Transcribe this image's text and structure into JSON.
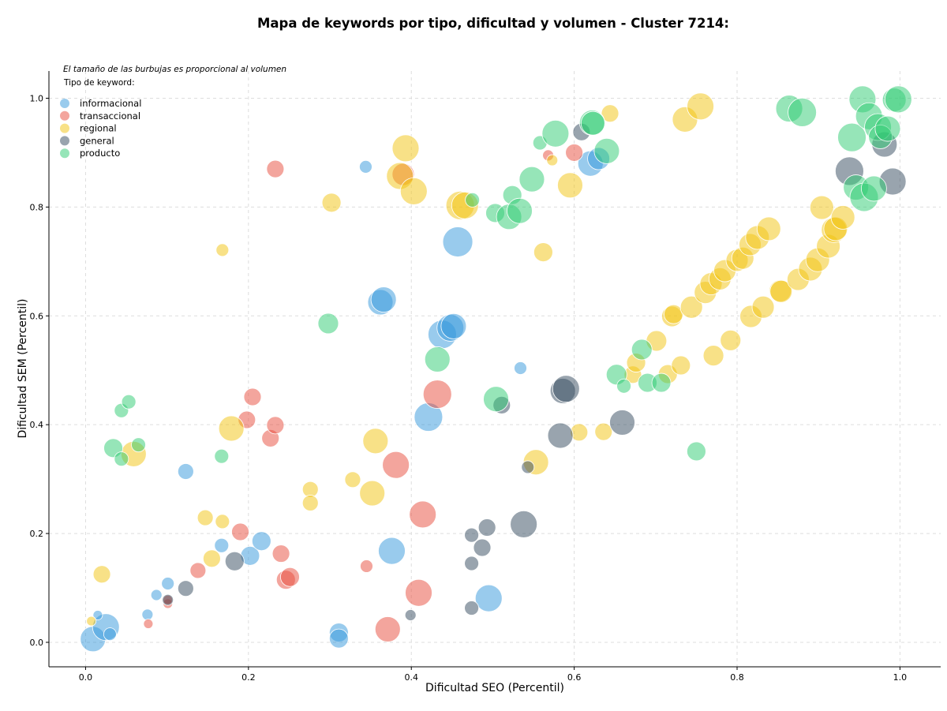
{
  "chart_data": {
    "type": "scatter",
    "title": "Mapa de keywords por tipo, dificultad y volumen - Cluster 7214:",
    "xlabel": "Dificultad SEO (Percentil)",
    "ylabel": "Dificultad SEM (Percentil)",
    "xlim": [
      -0.045,
      1.05
    ],
    "ylim": [
      -0.045,
      1.05
    ],
    "xticks": [
      "0.0",
      "0.2",
      "0.4",
      "0.6",
      "0.8",
      "1.0"
    ],
    "yticks": [
      "0.0",
      "0.2",
      "0.4",
      "0.6",
      "0.8",
      "1.0"
    ],
    "grid": true,
    "note": "El tamaño de las burbujas es proporcional al volumen",
    "legend_title": "Tipo de keyword:",
    "legend_position": "top-left",
    "series": [
      {
        "name": "informacional",
        "color": "#3498db",
        "points": [
          {
            "x": 0.009,
            "y": 0.006,
            "r": 16
          },
          {
            "x": 0.025,
            "y": 0.028,
            "r": 17
          },
          {
            "x": 0.03,
            "y": 0.015,
            "r": 8
          },
          {
            "x": 0.015,
            "y": 0.05,
            "r": 6
          },
          {
            "x": 0.076,
            "y": 0.051,
            "r": 7
          },
          {
            "x": 0.087,
            "y": 0.087,
            "r": 7
          },
          {
            "x": 0.101,
            "y": 0.108,
            "r": 8
          },
          {
            "x": 0.123,
            "y": 0.314,
            "r": 10
          },
          {
            "x": 0.167,
            "y": 0.178,
            "r": 9
          },
          {
            "x": 0.202,
            "y": 0.159,
            "r": 12
          },
          {
            "x": 0.216,
            "y": 0.186,
            "r": 12
          },
          {
            "x": 0.311,
            "y": 0.018,
            "r": 12
          },
          {
            "x": 0.311,
            "y": 0.007,
            "r": 12
          },
          {
            "x": 0.344,
            "y": 0.874,
            "r": 8
          },
          {
            "x": 0.362,
            "y": 0.625,
            "r": 16
          },
          {
            "x": 0.366,
            "y": 0.63,
            "r": 16
          },
          {
            "x": 0.376,
            "y": 0.168,
            "r": 17
          },
          {
            "x": 0.421,
            "y": 0.414,
            "r": 18
          },
          {
            "x": 0.438,
            "y": 0.566,
            "r": 18
          },
          {
            "x": 0.448,
            "y": 0.578,
            "r": 17
          },
          {
            "x": 0.452,
            "y": 0.581,
            "r": 16
          },
          {
            "x": 0.457,
            "y": 0.736,
            "r": 19
          },
          {
            "x": 0.495,
            "y": 0.081,
            "r": 17
          },
          {
            "x": 0.534,
            "y": 0.504,
            "r": 8
          },
          {
            "x": 0.62,
            "y": 0.88,
            "r": 16
          },
          {
            "x": 0.63,
            "y": 0.889,
            "r": 14
          }
        ]
      },
      {
        "name": "transaccional",
        "color": "#e74c3c",
        "points": [
          {
            "x": 0.077,
            "y": 0.034,
            "r": 6
          },
          {
            "x": 0.101,
            "y": 0.071,
            "r": 6
          },
          {
            "x": 0.101,
            "y": 0.078,
            "r": 6
          },
          {
            "x": 0.138,
            "y": 0.132,
            "r": 10
          },
          {
            "x": 0.19,
            "y": 0.203,
            "r": 11
          },
          {
            "x": 0.198,
            "y": 0.409,
            "r": 11
          },
          {
            "x": 0.205,
            "y": 0.451,
            "r": 11
          },
          {
            "x": 0.227,
            "y": 0.375,
            "r": 11
          },
          {
            "x": 0.233,
            "y": 0.399,
            "r": 11
          },
          {
            "x": 0.233,
            "y": 0.87,
            "r": 11
          },
          {
            "x": 0.24,
            "y": 0.163,
            "r": 11
          },
          {
            "x": 0.246,
            "y": 0.115,
            "r": 12
          },
          {
            "x": 0.251,
            "y": 0.12,
            "r": 12
          },
          {
            "x": 0.345,
            "y": 0.14,
            "r": 8
          },
          {
            "x": 0.371,
            "y": 0.024,
            "r": 16
          },
          {
            "x": 0.381,
            "y": 0.326,
            "r": 17
          },
          {
            "x": 0.39,
            "y": 0.86,
            "r": 14
          },
          {
            "x": 0.409,
            "y": 0.091,
            "r": 17
          },
          {
            "x": 0.414,
            "y": 0.235,
            "r": 17
          },
          {
            "x": 0.432,
            "y": 0.456,
            "r": 18
          },
          {
            "x": 0.568,
            "y": 0.895,
            "r": 7
          },
          {
            "x": 0.6,
            "y": 0.9,
            "r": 11
          }
        ]
      },
      {
        "name": "regional",
        "color": "#f1c40f",
        "points": [
          {
            "x": 0.007,
            "y": 0.039,
            "r": 6
          },
          {
            "x": 0.02,
            "y": 0.125,
            "r": 11
          },
          {
            "x": 0.059,
            "y": 0.346,
            "r": 16
          },
          {
            "x": 0.147,
            "y": 0.229,
            "r": 10
          },
          {
            "x": 0.155,
            "y": 0.154,
            "r": 11
          },
          {
            "x": 0.168,
            "y": 0.222,
            "r": 9
          },
          {
            "x": 0.168,
            "y": 0.721,
            "r": 8
          },
          {
            "x": 0.179,
            "y": 0.393,
            "r": 16
          },
          {
            "x": 0.276,
            "y": 0.281,
            "r": 10
          },
          {
            "x": 0.276,
            "y": 0.256,
            "r": 10
          },
          {
            "x": 0.302,
            "y": 0.808,
            "r": 12
          },
          {
            "x": 0.328,
            "y": 0.299,
            "r": 10
          },
          {
            "x": 0.352,
            "y": 0.274,
            "r": 16
          },
          {
            "x": 0.356,
            "y": 0.37,
            "r": 16
          },
          {
            "x": 0.386,
            "y": 0.857,
            "r": 17
          },
          {
            "x": 0.393,
            "y": 0.908,
            "r": 17
          },
          {
            "x": 0.403,
            "y": 0.829,
            "r": 17
          },
          {
            "x": 0.46,
            "y": 0.803,
            "r": 18
          },
          {
            "x": 0.466,
            "y": 0.803,
            "r": 17
          },
          {
            "x": 0.553,
            "y": 0.331,
            "r": 16
          },
          {
            "x": 0.562,
            "y": 0.717,
            "r": 12
          },
          {
            "x": 0.573,
            "y": 0.886,
            "r": 7
          },
          {
            "x": 0.595,
            "y": 0.84,
            "r": 16
          },
          {
            "x": 0.606,
            "y": 0.386,
            "r": 11
          },
          {
            "x": 0.636,
            "y": 0.387,
            "r": 11
          },
          {
            "x": 0.644,
            "y": 0.972,
            "r": 11
          },
          {
            "x": 0.672,
            "y": 0.492,
            "r": 11
          },
          {
            "x": 0.676,
            "y": 0.514,
            "r": 12
          },
          {
            "x": 0.701,
            "y": 0.554,
            "r": 13
          },
          {
            "x": 0.715,
            "y": 0.493,
            "r": 12
          },
          {
            "x": 0.72,
            "y": 0.599,
            "r": 13
          },
          {
            "x": 0.722,
            "y": 0.603,
            "r": 12
          },
          {
            "x": 0.731,
            "y": 0.509,
            "r": 12
          },
          {
            "x": 0.736,
            "y": 0.961,
            "r": 16
          },
          {
            "x": 0.744,
            "y": 0.616,
            "r": 14
          },
          {
            "x": 0.755,
            "y": 0.985,
            "r": 17
          },
          {
            "x": 0.761,
            "y": 0.643,
            "r": 14
          },
          {
            "x": 0.768,
            "y": 0.659,
            "r": 14
          },
          {
            "x": 0.771,
            "y": 0.527,
            "r": 13
          },
          {
            "x": 0.779,
            "y": 0.668,
            "r": 14
          },
          {
            "x": 0.785,
            "y": 0.683,
            "r": 14
          },
          {
            "x": 0.792,
            "y": 0.555,
            "r": 13
          },
          {
            "x": 0.8,
            "y": 0.702,
            "r": 14
          },
          {
            "x": 0.807,
            "y": 0.706,
            "r": 14
          },
          {
            "x": 0.816,
            "y": 0.731,
            "r": 14
          },
          {
            "x": 0.817,
            "y": 0.599,
            "r": 14
          },
          {
            "x": 0.825,
            "y": 0.744,
            "r": 15
          },
          {
            "x": 0.832,
            "y": 0.616,
            "r": 14
          },
          {
            "x": 0.839,
            "y": 0.76,
            "r": 15
          },
          {
            "x": 0.853,
            "y": 0.646,
            "r": 14
          },
          {
            "x": 0.854,
            "y": 0.645,
            "r": 14
          },
          {
            "x": 0.875,
            "y": 0.667,
            "r": 14
          },
          {
            "x": 0.89,
            "y": 0.686,
            "r": 15
          },
          {
            "x": 0.899,
            "y": 0.703,
            "r": 15
          },
          {
            "x": 0.904,
            "y": 0.799,
            "r": 15
          },
          {
            "x": 0.912,
            "y": 0.728,
            "r": 15
          },
          {
            "x": 0.919,
            "y": 0.758,
            "r": 16
          },
          {
            "x": 0.921,
            "y": 0.76,
            "r": 15
          },
          {
            "x": 0.93,
            "y": 0.781,
            "r": 15
          }
        ]
      },
      {
        "name": "general",
        "color": "#34495e",
        "points": [
          {
            "x": 0.101,
            "y": 0.078,
            "r": 7
          },
          {
            "x": 0.123,
            "y": 0.099,
            "r": 10
          },
          {
            "x": 0.183,
            "y": 0.149,
            "r": 12
          },
          {
            "x": 0.399,
            "y": 0.05,
            "r": 7
          },
          {
            "x": 0.474,
            "y": 0.063,
            "r": 9
          },
          {
            "x": 0.474,
            "y": 0.145,
            "r": 9
          },
          {
            "x": 0.474,
            "y": 0.197,
            "r": 9
          },
          {
            "x": 0.487,
            "y": 0.174,
            "r": 11
          },
          {
            "x": 0.493,
            "y": 0.211,
            "r": 11
          },
          {
            "x": 0.511,
            "y": 0.436,
            "r": 11
          },
          {
            "x": 0.538,
            "y": 0.217,
            "r": 17
          },
          {
            "x": 0.543,
            "y": 0.322,
            "r": 8
          },
          {
            "x": 0.583,
            "y": 0.38,
            "r": 16
          },
          {
            "x": 0.586,
            "y": 0.462,
            "r": 16
          },
          {
            "x": 0.59,
            "y": 0.466,
            "r": 17
          },
          {
            "x": 0.609,
            "y": 0.938,
            "r": 11
          },
          {
            "x": 0.659,
            "y": 0.404,
            "r": 16
          },
          {
            "x": 0.938,
            "y": 0.866,
            "r": 18
          },
          {
            "x": 0.981,
            "y": 0.915,
            "r": 16
          },
          {
            "x": 0.991,
            "y": 0.847,
            "r": 17
          }
        ]
      },
      {
        "name": "producto",
        "color": "#2ecc71",
        "points": [
          {
            "x": 0.034,
            "y": 0.357,
            "r": 12
          },
          {
            "x": 0.044,
            "y": 0.337,
            "r": 9
          },
          {
            "x": 0.044,
            "y": 0.426,
            "r": 9
          },
          {
            "x": 0.053,
            "y": 0.442,
            "r": 9
          },
          {
            "x": 0.065,
            "y": 0.363,
            "r": 9
          },
          {
            "x": 0.167,
            "y": 0.342,
            "r": 9
          },
          {
            "x": 0.298,
            "y": 0.586,
            "r": 13
          },
          {
            "x": 0.432,
            "y": 0.52,
            "r": 16
          },
          {
            "x": 0.475,
            "y": 0.813,
            "r": 9
          },
          {
            "x": 0.503,
            "y": 0.789,
            "r": 12
          },
          {
            "x": 0.504,
            "y": 0.447,
            "r": 16
          },
          {
            "x": 0.52,
            "y": 0.782,
            "r": 16
          },
          {
            "x": 0.524,
            "y": 0.822,
            "r": 12
          },
          {
            "x": 0.533,
            "y": 0.793,
            "r": 16
          },
          {
            "x": 0.548,
            "y": 0.851,
            "r": 16
          },
          {
            "x": 0.558,
            "y": 0.918,
            "r": 9
          },
          {
            "x": 0.577,
            "y": 0.935,
            "r": 17
          },
          {
            "x": 0.622,
            "y": 0.955,
            "r": 16
          },
          {
            "x": 0.623,
            "y": 0.954,
            "r": 15
          },
          {
            "x": 0.64,
            "y": 0.903,
            "r": 16
          },
          {
            "x": 0.652,
            "y": 0.492,
            "r": 13
          },
          {
            "x": 0.661,
            "y": 0.471,
            "r": 9
          },
          {
            "x": 0.683,
            "y": 0.538,
            "r": 13
          },
          {
            "x": 0.69,
            "y": 0.477,
            "r": 12
          },
          {
            "x": 0.707,
            "y": 0.477,
            "r": 12
          },
          {
            "x": 0.75,
            "y": 0.351,
            "r": 12
          },
          {
            "x": 0.864,
            "y": 0.981,
            "r": 17
          },
          {
            "x": 0.88,
            "y": 0.974,
            "r": 18
          },
          {
            "x": 0.941,
            "y": 0.928,
            "r": 18
          },
          {
            "x": 0.946,
            "y": 0.836,
            "r": 16
          },
          {
            "x": 0.954,
            "y": 0.998,
            "r": 17
          },
          {
            "x": 0.956,
            "y": 0.818,
            "r": 18
          },
          {
            "x": 0.962,
            "y": 0.967,
            "r": 17
          },
          {
            "x": 0.968,
            "y": 0.834,
            "r": 16
          },
          {
            "x": 0.973,
            "y": 0.947,
            "r": 17
          },
          {
            "x": 0.976,
            "y": 0.929,
            "r": 15
          },
          {
            "x": 0.985,
            "y": 0.944,
            "r": 16
          },
          {
            "x": 0.993,
            "y": 0.997,
            "r": 15
          },
          {
            "x": 0.998,
            "y": 0.998,
            "r": 17
          }
        ]
      }
    ]
  }
}
